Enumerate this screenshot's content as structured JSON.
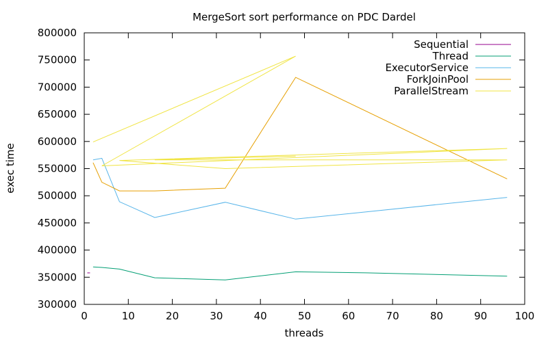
{
  "chart_data": {
    "type": "line",
    "title": "MergeSort sort performance on PDC Dardel",
    "xlabel": "threads",
    "ylabel": "exec time",
    "xlim": [
      0,
      100
    ],
    "ylim": [
      300000,
      800000
    ],
    "xticks": [
      0,
      10,
      20,
      30,
      40,
      50,
      60,
      70,
      80,
      90,
      100
    ],
    "yticks": [
      300000,
      350000,
      400000,
      450000,
      500000,
      550000,
      600000,
      650000,
      700000,
      750000,
      800000
    ],
    "grid": false,
    "legend_position": "top-right",
    "series": [
      {
        "name": "Sequential",
        "color": "#94008c",
        "points": [
          [
            1,
            358000
          ]
        ]
      },
      {
        "name": "Thread",
        "color": "#009e73",
        "points": [
          [
            2,
            369000
          ],
          [
            4,
            368000
          ],
          [
            8,
            365000
          ],
          [
            16,
            349000
          ],
          [
            32,
            345000
          ],
          [
            48,
            360000
          ],
          [
            64,
            358000
          ],
          [
            96,
            352000
          ]
        ]
      },
      {
        "name": "ExecutorService",
        "color": "#56b4e9",
        "points": [
          [
            2,
            566000
          ],
          [
            4,
            569000
          ],
          [
            8,
            489000
          ],
          [
            16,
            460000
          ],
          [
            32,
            488000
          ],
          [
            48,
            457000
          ],
          [
            96,
            497000
          ]
        ]
      },
      {
        "name": "ForkJoinPool",
        "color": "#e69f00",
        "points": [
          [
            2,
            561000
          ],
          [
            4,
            525000
          ],
          [
            8,
            509000
          ],
          [
            16,
            509000
          ],
          [
            32,
            514000
          ],
          [
            48,
            718000
          ],
          [
            96,
            531000
          ]
        ]
      },
      {
        "name": "ParallelStream",
        "color": "#f0e442",
        "points": [
          [
            2,
            599000
          ],
          [
            48,
            757000
          ],
          [
            4,
            555000
          ],
          [
            96,
            587000
          ],
          [
            8,
            565000
          ],
          [
            32,
            550000
          ],
          [
            96,
            566000
          ],
          [
            16,
            566000
          ],
          [
            48,
            573000
          ]
        ]
      }
    ]
  }
}
